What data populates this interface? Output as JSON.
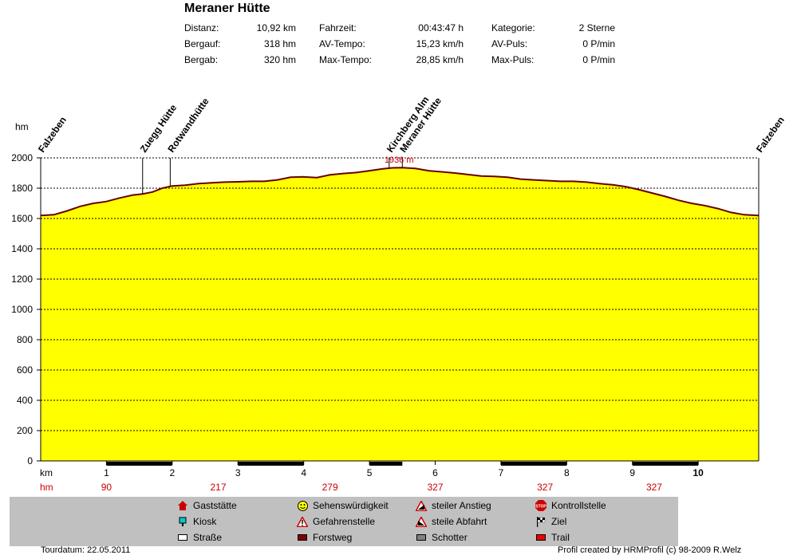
{
  "header": {
    "title": "Meraner Hütte",
    "stats": [
      [
        {
          "label": "Distanz:",
          "value": "10,92 km"
        },
        {
          "label": "Fahrzeit:",
          "value": "00:43:47 h"
        },
        {
          "label": "Kategorie:",
          "value": "2 Sterne"
        }
      ],
      [
        {
          "label": "Bergauf:",
          "value": "318 hm"
        },
        {
          "label": "AV-Tempo:",
          "value": "15,23 km/h"
        },
        {
          "label": "AV-Puls:",
          "value": "0 P/min"
        }
      ],
      [
        {
          "label": "Bergab:",
          "value": "320 hm"
        },
        {
          "label": "Max-Tempo:",
          "value": "28,85 km/h"
        },
        {
          "label": "Max-Puls:",
          "value": "0 P/min"
        }
      ]
    ]
  },
  "chart_data": {
    "type": "area",
    "title": "Meraner Hütte",
    "ylabel": "hm",
    "xlabel": "km",
    "xlim": [
      0,
      10.92
    ],
    "ylim": [
      0,
      2000
    ],
    "yticks": [
      0,
      200,
      400,
      600,
      800,
      1000,
      1200,
      1400,
      1600,
      1800,
      2000
    ],
    "xticks": [
      1,
      2,
      3,
      4,
      5,
      6,
      7,
      8,
      9,
      10
    ],
    "grid": true,
    "colors": {
      "fill": "#ffff00",
      "line": "#660000",
      "grid": "#000000",
      "max_label": "#cc0000",
      "hm_row": "#cc0000"
    },
    "series": [
      {
        "x": [
          0,
          0.2,
          0.4,
          0.6,
          0.8,
          1.0,
          1.2,
          1.4,
          1.55,
          1.7,
          1.85,
          2.0,
          2.2,
          2.4,
          2.6,
          2.8,
          3.0,
          3.2,
          3.4,
          3.6,
          3.8,
          4.0,
          4.2,
          4.4,
          4.6,
          4.8,
          5.0,
          5.2,
          5.35,
          5.5,
          5.7,
          5.9,
          6.1,
          6.3,
          6.5,
          6.7,
          6.9,
          7.1,
          7.3,
          7.5,
          7.7,
          7.9,
          8.1,
          8.3,
          8.5,
          8.7,
          8.9,
          9.1,
          9.3,
          9.5,
          9.7,
          9.9,
          10.1,
          10.3,
          10.5,
          10.7,
          10.92
        ],
        "values": [
          1620,
          1625,
          1650,
          1680,
          1700,
          1712,
          1735,
          1755,
          1762,
          1775,
          1800,
          1815,
          1820,
          1830,
          1836,
          1840,
          1842,
          1845,
          1845,
          1855,
          1872,
          1875,
          1870,
          1888,
          1897,
          1903,
          1915,
          1928,
          1934,
          1936,
          1930,
          1915,
          1908,
          1900,
          1890,
          1880,
          1878,
          1872,
          1860,
          1855,
          1850,
          1845,
          1845,
          1840,
          1830,
          1822,
          1810,
          1790,
          1768,
          1745,
          1720,
          1700,
          1685,
          1665,
          1640,
          1625,
          1620
        ]
      }
    ],
    "max_label": "1936 m",
    "waypoints": [
      {
        "name": "Falzeben",
        "km": 0
      },
      {
        "name": "Zuegg Hütte",
        "km": 1.55
      },
      {
        "name": "Rotwandhütte",
        "km": 1.97
      },
      {
        "name": "Kirchberg Alm",
        "km": 5.3
      },
      {
        "name": "Meraner Hütte",
        "km": 5.5
      },
      {
        "name": "Falzeben",
        "km": 10.92
      }
    ],
    "surface_segments": [
      [
        1,
        2
      ],
      [
        3,
        4
      ],
      [
        5,
        5.5
      ],
      [
        7,
        8
      ],
      [
        9,
        10
      ]
    ],
    "hm_row": {
      "label": "hm",
      "values": [
        {
          "x": 1,
          "text": "90"
        },
        {
          "x": 2.7,
          "text": "217"
        },
        {
          "x": 4.4,
          "text": "279"
        },
        {
          "x": 6.0,
          "text": "327"
        },
        {
          "x": 7.67,
          "text": "327"
        },
        {
          "x": 9.33,
          "text": "327"
        }
      ]
    }
  },
  "legend": [
    {
      "label": "Gaststätte",
      "icon": "house-icon"
    },
    {
      "label": "Kiosk",
      "icon": "kiosk-icon"
    },
    {
      "label": "Straße",
      "icon": "road-icon"
    },
    {
      "label": "Sehenswürdigkeit",
      "icon": "smiley-icon"
    },
    {
      "label": "Gefahrenstelle",
      "icon": "warning-icon"
    },
    {
      "label": "Forstweg",
      "icon": "forestroad-icon"
    },
    {
      "label": "steiler Anstieg",
      "icon": "steep-climb-icon"
    },
    {
      "label": "steile Abfahrt",
      "icon": "steep-descent-icon"
    },
    {
      "label": "Schotter",
      "icon": "gravel-icon"
    },
    {
      "label": "Kontrollstelle",
      "icon": "stop-icon"
    },
    {
      "label": "Ziel",
      "icon": "finish-flag-icon"
    },
    {
      "label": "Trail",
      "icon": "trail-icon"
    }
  ],
  "footer": {
    "date": "Tourdatum: 22.05.2011",
    "credit": "Profil created by HRMProfil (c) 98-2009 R.Welz"
  }
}
